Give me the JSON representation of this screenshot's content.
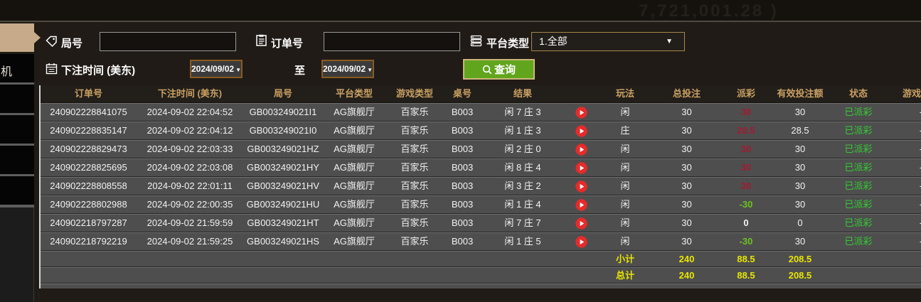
{
  "topbar": {
    "watermark": "7,721,001.28 )"
  },
  "sidebar": {
    "partial_item": "机"
  },
  "filters": {
    "round_label": "局号",
    "round_value": "",
    "order_label": "订单号",
    "order_value": "",
    "platform_label": "平台类型",
    "platform_value": "1.全部",
    "time_label": "下注时间 (美东)",
    "date_from": "2024/09/02",
    "to_label": "至",
    "date_to": "2024/09/02",
    "query_label": "查询"
  },
  "table": {
    "headers": [
      "订单号",
      "下注时间 (美东)",
      "局号",
      "平台类型",
      "游戏类型",
      "桌号",
      "结果",
      "",
      "玩法",
      "总投注",
      "派彩",
      "有效投注额",
      "状态",
      "游戏模式"
    ],
    "rows": [
      {
        "order": "240902228841075",
        "time": "2024-09-02 22:04:52",
        "round": "GB003249021I1",
        "platform": "AG旗舰厅",
        "game": "百家乐",
        "table": "B003",
        "result": "闲 7 庄 3",
        "play": "闲",
        "bet": "30",
        "payout": "30",
        "payout_color": "red",
        "valid": "30",
        "status": "已派彩",
        "mode": "-"
      },
      {
        "order": "240902228835147",
        "time": "2024-09-02 22:04:12",
        "round": "GB003249021I0",
        "platform": "AG旗舰厅",
        "game": "百家乐",
        "table": "B003",
        "result": "闲 1 庄 3",
        "play": "庄",
        "bet": "30",
        "payout": "28.5",
        "payout_color": "red",
        "valid": "28.5",
        "status": "已派彩",
        "mode": "-"
      },
      {
        "order": "240902228829473",
        "time": "2024-09-02 22:03:33",
        "round": "GB003249021HZ",
        "platform": "AG旗舰厅",
        "game": "百家乐",
        "table": "B003",
        "result": "闲 2 庄 0",
        "play": "闲",
        "bet": "30",
        "payout": "30",
        "payout_color": "red",
        "valid": "30",
        "status": "已派彩",
        "mode": "-"
      },
      {
        "order": "240902228825695",
        "time": "2024-09-02 22:03:08",
        "round": "GB003249021HY",
        "platform": "AG旗舰厅",
        "game": "百家乐",
        "table": "B003",
        "result": "闲 8 庄 4",
        "play": "闲",
        "bet": "30",
        "payout": "30",
        "payout_color": "red",
        "valid": "30",
        "status": "已派彩",
        "mode": "-"
      },
      {
        "order": "240902228808558",
        "time": "2024-09-02 22:01:11",
        "round": "GB003249021HV",
        "platform": "AG旗舰厅",
        "game": "百家乐",
        "table": "B003",
        "result": "闲 3 庄 2",
        "play": "闲",
        "bet": "30",
        "payout": "30",
        "payout_color": "red",
        "valid": "30",
        "status": "已派彩",
        "mode": "-"
      },
      {
        "order": "240902228802988",
        "time": "2024-09-02 22:00:35",
        "round": "GB003249021HU",
        "platform": "AG旗舰厅",
        "game": "百家乐",
        "table": "B003",
        "result": "闲 1 庄 4",
        "play": "闲",
        "bet": "30",
        "payout": "-30",
        "payout_color": "green",
        "valid": "30",
        "status": "已派彩",
        "mode": "-"
      },
      {
        "order": "240902218797287",
        "time": "2024-09-02 21:59:59",
        "round": "GB003249021HT",
        "platform": "AG旗舰厅",
        "game": "百家乐",
        "table": "B003",
        "result": "闲 7 庄 7",
        "play": "闲",
        "bet": "30",
        "payout": "0",
        "payout_color": "zero",
        "valid": "0",
        "status": "已派彩",
        "mode": "-"
      },
      {
        "order": "240902218792219",
        "time": "2024-09-02 21:59:25",
        "round": "GB003249021HS",
        "platform": "AG旗舰厅",
        "game": "百家乐",
        "table": "B003",
        "result": "闲 1 庄 5",
        "play": "闲",
        "bet": "30",
        "payout": "-30",
        "payout_color": "green",
        "valid": "30",
        "status": "已派彩",
        "mode": "-"
      }
    ],
    "subtotal": {
      "label": "小计",
      "bet": "240",
      "payout": "88.5",
      "valid": "208.5"
    },
    "total": {
      "label": "总计",
      "bet": "240",
      "payout": "88.5",
      "valid": "208.5"
    }
  },
  "colors": {
    "header_text": "#c9a063",
    "row_bg": "#4e4e4e",
    "status_green": "#35cb35",
    "payout_positive_red": "#a01b33",
    "payout_negative_green": "#6cc41f",
    "totals_yellow": "#e8e600",
    "sidebar_tan": "#c7aa89",
    "query_green": "#61a51d",
    "date_border": "#8a5a1e",
    "play_red": "#e52b2b"
  }
}
